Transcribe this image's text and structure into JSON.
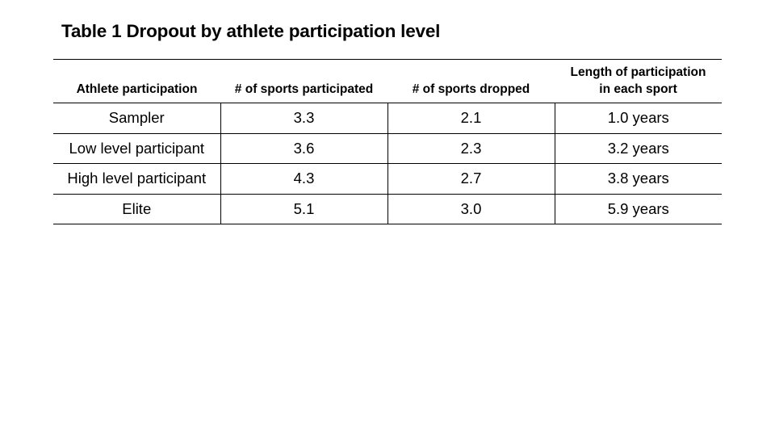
{
  "title": "Table 1 Dropout by athlete participation level",
  "table": {
    "headers": [
      "Athlete participation",
      "# of sports participated",
      "# of sports dropped",
      "Length of participation in each sport"
    ],
    "rows": [
      [
        "Sampler",
        "3.3",
        "2.1",
        "1.0 years"
      ],
      [
        "Low level participant",
        "3.6",
        "2.3",
        "3.2 years"
      ],
      [
        "High level participant",
        "4.3",
        "2.7",
        "3.8 years"
      ],
      [
        "Elite",
        "5.1",
        "3.0",
        "5.9 years"
      ]
    ]
  }
}
